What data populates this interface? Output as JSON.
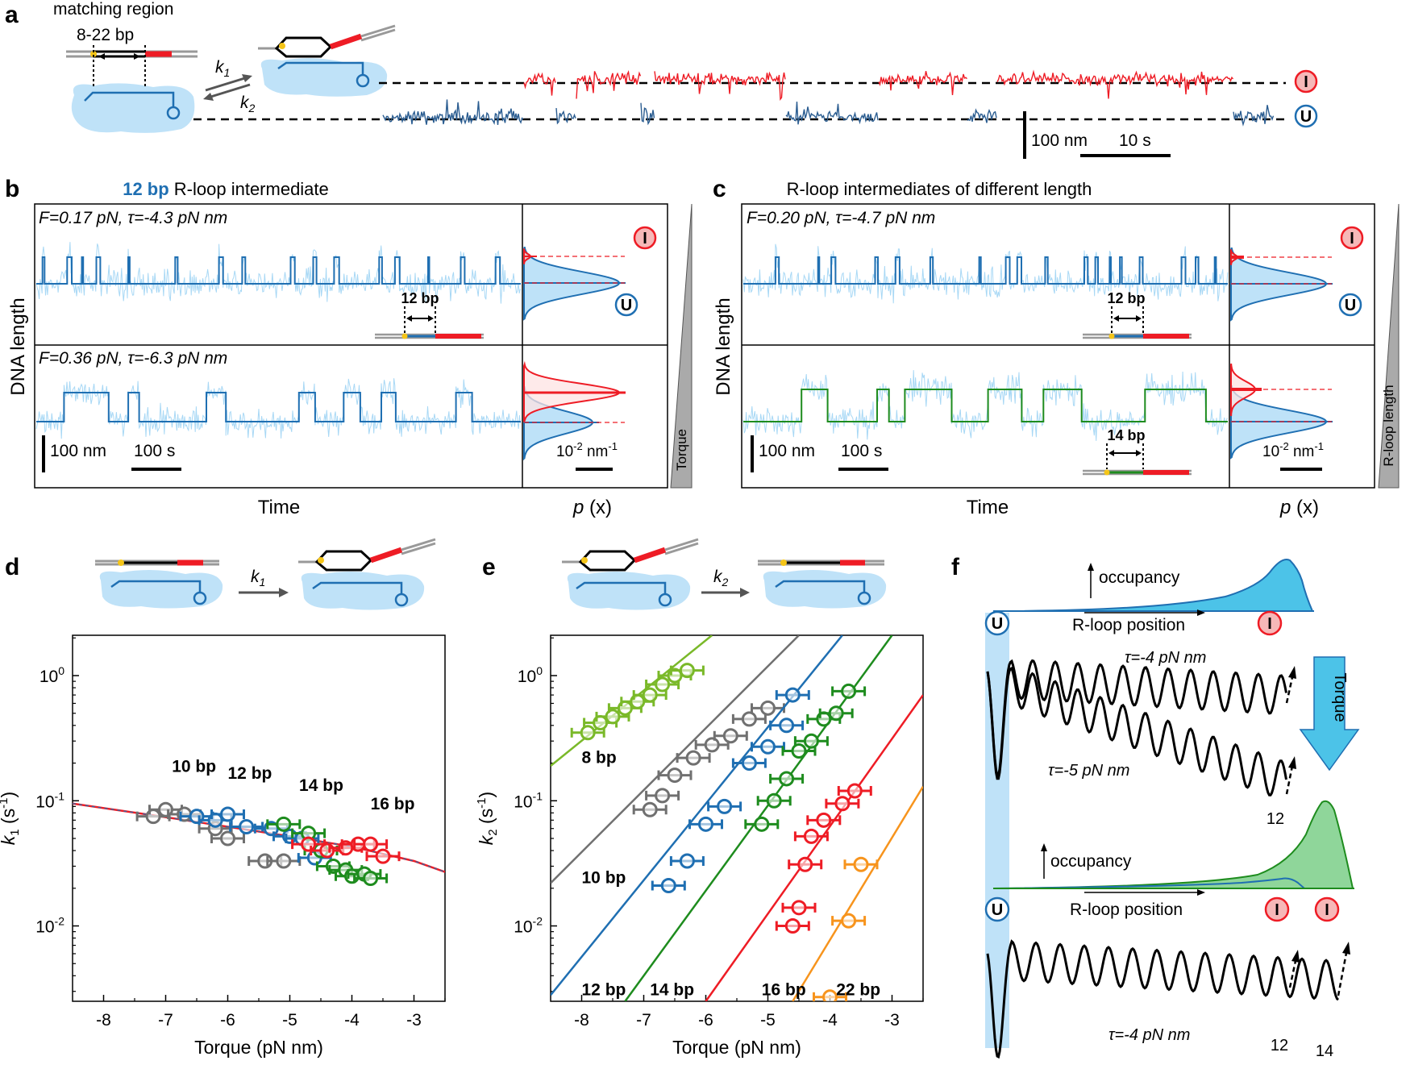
{
  "panel_labels": [
    "a",
    "b",
    "c",
    "d",
    "e",
    "f"
  ],
  "state_labels": {
    "intermediate": "I",
    "unbound": "U"
  },
  "colors": {
    "blue": "#1f6fb2",
    "red": "#ee1c25",
    "green": "#1e8c1e",
    "gray": "#707070",
    "lightgreen": "#7ab929",
    "orange": "#f7941d",
    "lightblue": "#a8d8f5",
    "cascade": "#bfe2f8"
  },
  "panel_a": {
    "matching_region": "matching region",
    "range": "8-22 bp",
    "k1": "k",
    "k1_sub": "1",
    "k2": "k",
    "k2_sub": "2",
    "scale_length": "100 nm",
    "scale_time": "10 s"
  },
  "panel_b": {
    "title_bold": "12 bp",
    "title_rest": " R-loop intermediate",
    "cond_top": "F=0.17 pN, τ=-4.3 pN nm",
    "cond_bottom": "F=0.36 pN, τ=-6.3 pN nm",
    "schematic_bp": "12 bp",
    "ylabel": "DNA length",
    "xlabel": "Time",
    "hist_xlabel_p": "p",
    "hist_xlabel_x": " (x)",
    "scale_length": "100 nm",
    "scale_time": "100 s",
    "hist_scale_base": "10",
    "hist_scale_exp": "-2",
    "hist_scale_unit": " nm",
    "hist_scale_unit_exp": "-1",
    "wedge": "Torque"
  },
  "panel_c": {
    "title": "R-loop intermediates of different length",
    "cond_top": "F=0.20 pN, τ=-4.7 pN nm",
    "schematic_bp_top": "12 bp",
    "schematic_bp_bottom": "14 bp",
    "ylabel": "DNA length",
    "xlabel": "Time",
    "hist_xlabel_p": "p",
    "hist_xlabel_x": " (x)",
    "scale_length": "100 nm",
    "scale_time": "100 s",
    "hist_scale_base": "10",
    "hist_scale_exp": "-2",
    "hist_scale_unit": " nm",
    "hist_scale_unit_exp": "-1",
    "wedge": "R-loop length"
  },
  "panel_d": {
    "rate_label": "k",
    "rate_sub": "1"
  },
  "panel_e": {
    "rate_label": "k",
    "rate_sub": "2"
  },
  "panel_f": {
    "occupancy": "occupancy",
    "rloop_position": "R-loop position",
    "tau_a": "τ=-4 pN nm",
    "tau_b": "τ=-5 pN nm",
    "tau_c": "τ=-4 pN nm",
    "torque": "Torque",
    "n12_top": "12",
    "n12_bottom": "12",
    "n14": "14"
  },
  "chart_data": [
    {
      "id": "d",
      "type": "scatter",
      "xlabel": "Torque (pN nm)",
      "ylabel_main": "k",
      "ylabel_sub": "1",
      "ylabel_unit": " (s",
      "ylabel_unit_exp": "-1",
      "ylabel_close": ")",
      "yscale": "log",
      "xlim": [
        -8.5,
        -2.5
      ],
      "ylim": [
        0.0025,
        2.1
      ],
      "xticks": [
        -8,
        -7,
        -6,
        -5,
        -4,
        -3
      ],
      "xtick_labels": [
        "-8",
        "-7",
        "-6",
        "-5",
        "-4",
        "-3"
      ],
      "yticks": [
        0.01,
        0.1,
        1
      ],
      "ytick_base": "10",
      "ytick_exps": [
        "-2",
        "-1",
        "0"
      ],
      "series": [
        {
          "name": "10 bp",
          "color": "gray",
          "label_pos": [
            -6.9,
            0.17
          ],
          "x": [
            -7.2,
            -7.0,
            -6.7,
            -6.2,
            -6.0,
            -5.4,
            -5.1
          ],
          "y": [
            0.075,
            0.085,
            0.078,
            0.06,
            0.05,
            0.033,
            0.033
          ]
        },
        {
          "name": "12 bp",
          "color": "blue",
          "label_pos": [
            -6.0,
            0.15
          ],
          "x": [
            -6.5,
            -6.2,
            -6.0,
            -5.7,
            -5.3,
            -5.0,
            -4.8,
            -4.6
          ],
          "y": [
            0.075,
            0.07,
            0.078,
            0.062,
            0.06,
            0.052,
            0.05,
            0.035
          ]
        },
        {
          "name": "14 bp",
          "color": "green",
          "label_pos": [
            -4.85,
            0.12
          ],
          "x": [
            -5.1,
            -4.7,
            -4.5,
            -4.3,
            -4.1,
            -4.0,
            -3.8,
            -3.7
          ],
          "y": [
            0.065,
            0.055,
            0.04,
            0.03,
            0.028,
            0.025,
            0.026,
            0.024
          ]
        },
        {
          "name": "16 bp",
          "color": "red",
          "label_pos": [
            -3.7,
            0.085
          ],
          "x": [
            -4.7,
            -4.4,
            -4.1,
            -3.9,
            -3.7,
            -3.5
          ],
          "y": [
            0.045,
            0.04,
            0.042,
            0.045,
            0.045,
            0.036
          ]
        }
      ],
      "fit": {
        "x": [
          -8.5,
          -7,
          -6,
          -5,
          -4,
          -3,
          -2.5
        ],
        "y": [
          0.095,
          0.074,
          0.062,
          0.052,
          0.043,
          0.033,
          0.027
        ]
      }
    },
    {
      "id": "e",
      "type": "scatter",
      "xlabel": "Torque (pN nm)",
      "ylabel_main": "k",
      "ylabel_sub": "2",
      "ylabel_unit": " (s",
      "ylabel_unit_exp": "-1",
      "ylabel_close": ")",
      "yscale": "log",
      "xlim": [
        -8.5,
        -2.5
      ],
      "ylim": [
        0.0025,
        2.1
      ],
      "xticks": [
        -8,
        -7,
        -6,
        -5,
        -4,
        -3
      ],
      "xtick_labels": [
        "-8",
        "-7",
        "-6",
        "-5",
        "-4",
        "-3"
      ],
      "yticks": [
        0.01,
        0.1,
        1
      ],
      "ytick_base": "10",
      "ytick_exps": [
        "-2",
        "-1",
        "0"
      ],
      "series": [
        {
          "name": "8 bp",
          "color": "lightgreen",
          "label_pos": [
            -8.0,
            0.2
          ],
          "x": [
            -7.9,
            -7.7,
            -7.5,
            -7.3,
            -7.1,
            -6.9,
            -6.7,
            -6.5,
            -6.3
          ],
          "y": [
            0.35,
            0.42,
            0.47,
            0.55,
            0.62,
            0.7,
            0.85,
            1.0,
            1.1
          ],
          "fit": {
            "x": [
              -8.5,
              -5.9
            ],
            "y": [
              0.19,
              2.1
            ]
          }
        },
        {
          "name": "10 bp",
          "color": "gray",
          "label_pos": [
            -8.0,
            0.022
          ],
          "x": [
            -6.9,
            -6.7,
            -6.5,
            -6.2,
            -5.9,
            -5.6,
            -5.3,
            -5.0
          ],
          "y": [
            0.085,
            0.11,
            0.16,
            0.22,
            0.28,
            0.33,
            0.45,
            0.55
          ],
          "fit": {
            "x": [
              -8.5,
              -4.5
            ],
            "y": [
              0.022,
              2.1
            ]
          }
        },
        {
          "name": "12 bp",
          "color": "blue",
          "label_pos": [
            -8.0,
            0.0028
          ],
          "x": [
            -6.6,
            -6.3,
            -6.0,
            -5.7,
            -5.3,
            -5.0,
            -4.7,
            -4.6
          ],
          "y": [
            0.021,
            0.033,
            0.065,
            0.09,
            0.2,
            0.27,
            0.4,
            0.7
          ],
          "fit": {
            "x": [
              -8.5,
              -3.8
            ],
            "y": [
              0.0028,
              2.1
            ]
          }
        },
        {
          "name": "14 bp",
          "color": "green",
          "label_pos": [
            -6.9,
            0.0028
          ],
          "x": [
            -5.1,
            -4.9,
            -4.7,
            -4.5,
            -4.3,
            -4.1,
            -3.9,
            -3.7
          ],
          "y": [
            0.065,
            0.1,
            0.15,
            0.25,
            0.3,
            0.45,
            0.5,
            0.75
          ],
          "fit": {
            "x": [
              -7.3,
              -3.0
            ],
            "y": [
              0.0025,
              2.1
            ]
          }
        },
        {
          "name": "16 bp",
          "color": "red",
          "label_pos": [
            -5.1,
            0.0028
          ],
          "x": [
            -4.6,
            -4.5,
            -4.4,
            -4.3,
            -4.1,
            -3.8,
            -3.6
          ],
          "y": [
            0.01,
            0.014,
            0.031,
            0.052,
            0.07,
            0.095,
            0.12
          ],
          "fit": {
            "x": [
              -6.0,
              -2.5
            ],
            "y": [
              0.0025,
              0.7
            ]
          }
        },
        {
          "name": "22 bp",
          "color": "orange",
          "label_pos": [
            -3.9,
            0.0028
          ],
          "x": [
            -4.0,
            -3.7,
            -3.5
          ],
          "y": [
            0.0027,
            0.011,
            0.031
          ],
          "fit": {
            "x": [
              -4.6,
              -2.5
            ],
            "y": [
              0.0025,
              0.13
            ]
          }
        }
      ]
    }
  ]
}
